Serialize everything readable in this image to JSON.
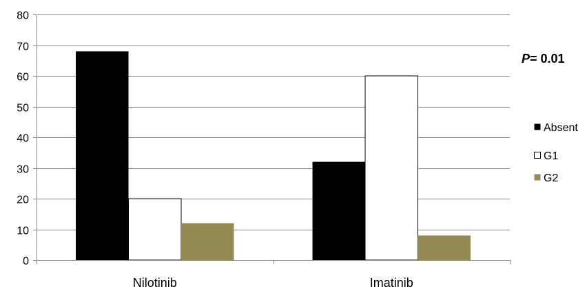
{
  "chart_data": {
    "type": "bar",
    "categories": [
      "Nilotinib",
      "Imatinib"
    ],
    "series": [
      {
        "name": "Absent",
        "values": [
          68,
          32
        ],
        "color": "#000000"
      },
      {
        "name": "G1",
        "values": [
          20,
          60
        ],
        "color": "#ffffff",
        "stroke": "#000000"
      },
      {
        "name": "G2",
        "values": [
          12,
          8
        ],
        "color": "#948a54"
      }
    ],
    "ylim": [
      0,
      80
    ],
    "yticks": [
      0,
      10,
      20,
      30,
      40,
      50,
      60,
      70,
      80
    ],
    "grid": true,
    "gridline_color": "#868686",
    "legend": "right",
    "annotation": {
      "italic": "P",
      "rest": "= 0.01"
    }
  }
}
